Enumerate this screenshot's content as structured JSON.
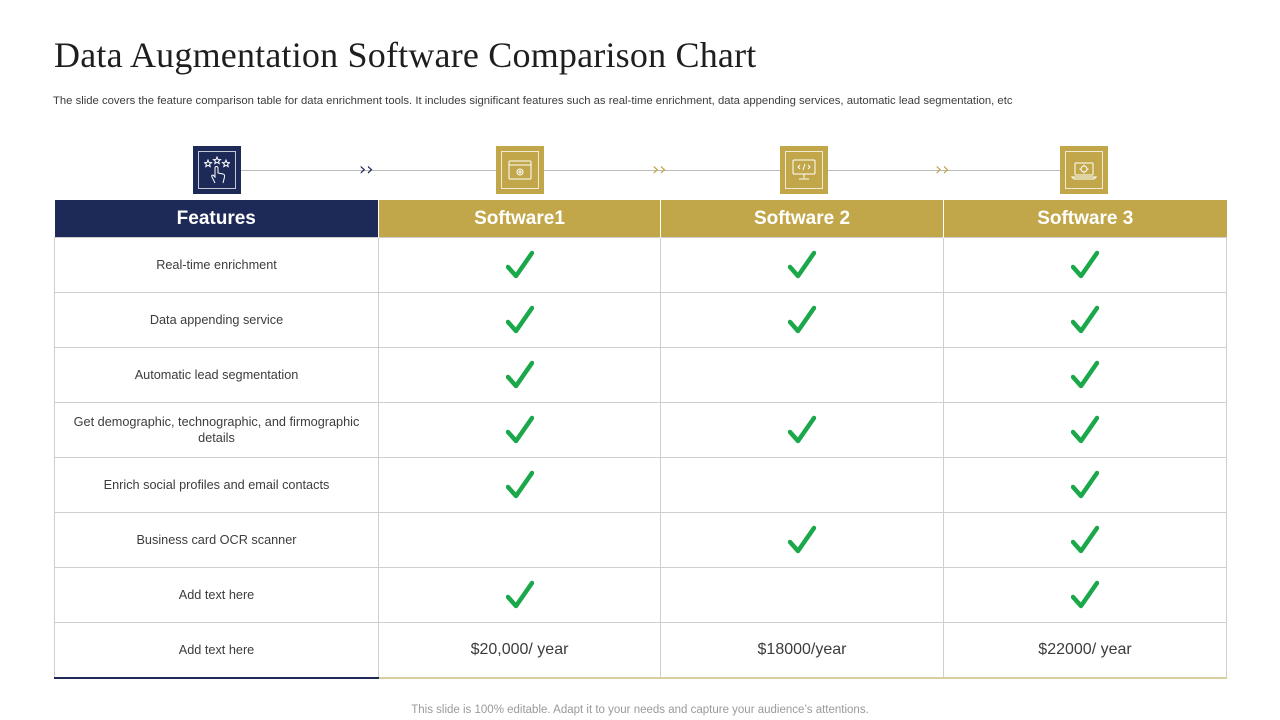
{
  "slide": {
    "title": "Data Augmentation Software Comparison Chart",
    "subtitle": "The slide covers the feature comparison table for data enrichment tools. It includes significant features such as real-time enrichment, data appending services, automatic lead segmentation, etc",
    "footer": "This slide is 100% editable. Adapt it to your needs and capture your audience’s attentions."
  },
  "colors": {
    "navy": "#1d2a57",
    "gold": "#c2a74a",
    "check_green": "#1aa84a"
  },
  "flow_icons": [
    "touch-stars-icon",
    "browser-settings-icon",
    "monitor-code-icon",
    "laptop-gear-icon"
  ],
  "table": {
    "headers": [
      "Features",
      "Software1",
      "Software 2",
      "Software 3"
    ],
    "rows": [
      {
        "feature": "Real-time enrichment",
        "cells": [
          true,
          true,
          true
        ]
      },
      {
        "feature": "Data appending service",
        "cells": [
          true,
          true,
          true
        ]
      },
      {
        "feature": "Automatic lead segmentation",
        "cells": [
          true,
          false,
          true
        ]
      },
      {
        "feature": "Get demographic, technographic, and firmographic details",
        "cells": [
          true,
          true,
          true
        ]
      },
      {
        "feature": "Enrich social profiles and email contacts",
        "cells": [
          true,
          false,
          true
        ]
      },
      {
        "feature": "Business card OCR scanner",
        "cells": [
          false,
          true,
          true
        ]
      },
      {
        "feature": "Add text here",
        "cells": [
          true,
          false,
          true
        ]
      }
    ],
    "price_row": {
      "feature": "Add text here",
      "prices": [
        "$20,000/ year",
        "$18000/year",
        "$22000/ year"
      ]
    }
  }
}
